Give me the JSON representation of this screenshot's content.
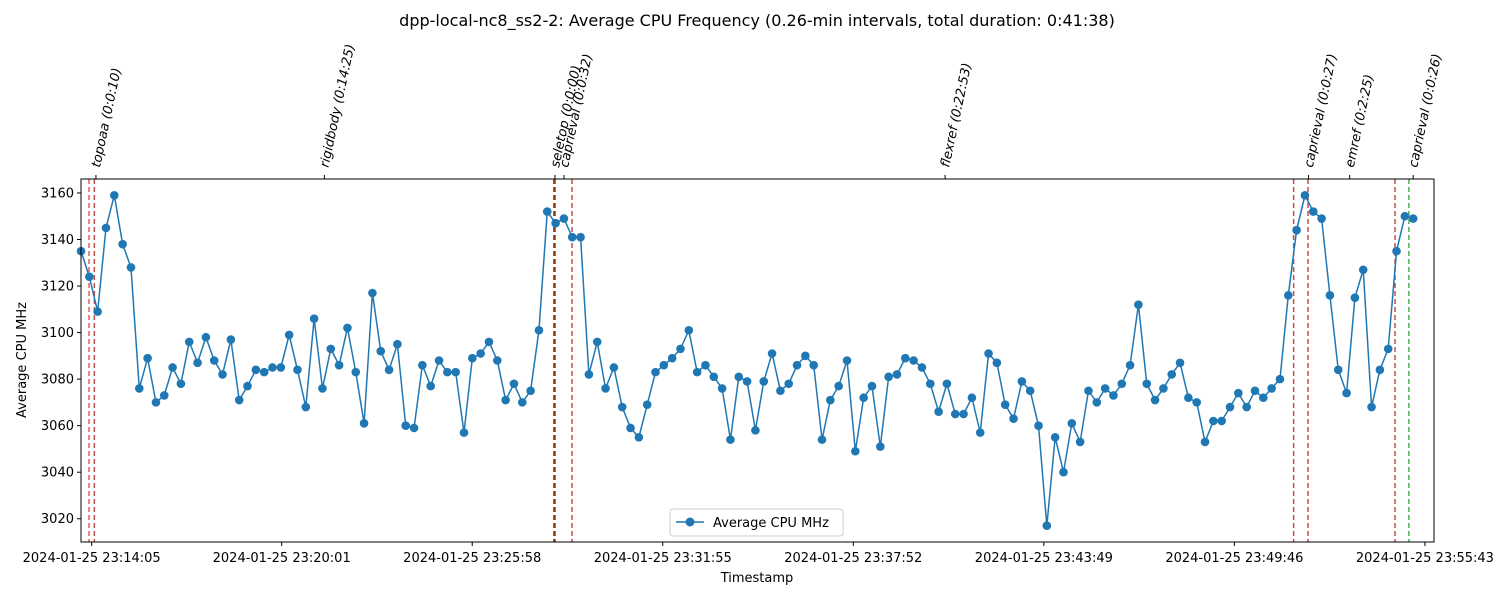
{
  "chart_data": {
    "type": "line",
    "title": "dpp-local-nc8_ss2-2: Average CPU Frequency (0.26-min intervals, total duration: 0:41:38)",
    "xlabel": "Timestamp",
    "ylabel": "Average CPU MHz",
    "x_start": "2024-01-25 23:13:45",
    "x_interval_seconds": 15.6,
    "xlim": [
      "2024-01-25 23:13:45",
      "2024-01-25 23:56:00"
    ],
    "ylim": [
      3010,
      3166
    ],
    "x_ticks": [
      "2024-01-25 23:14:05",
      "2024-01-25 23:20:01",
      "2024-01-25 23:25:58",
      "2024-01-25 23:31:55",
      "2024-01-25 23:37:52",
      "2024-01-25 23:43:49",
      "2024-01-25 23:49:46",
      "2024-01-25 23:55:43"
    ],
    "y_ticks": [
      3020,
      3040,
      3060,
      3080,
      3100,
      3120,
      3140,
      3160
    ],
    "grid": false,
    "legend_position": "bottom-center",
    "series": [
      {
        "name": "Average CPU MHz",
        "color": "#1f77b4",
        "marker": "circle",
        "values": [
          3135,
          3124,
          3109,
          3145,
          3159,
          3138,
          3128,
          3076,
          3089,
          3070,
          3073,
          3085,
          3078,
          3096,
          3087,
          3098,
          3088,
          3082,
          3097,
          3071,
          3077,
          3084,
          3083,
          3085,
          3085,
          3099,
          3084,
          3068,
          3106,
          3076,
          3093,
          3086,
          3102,
          3083,
          3061,
          3117,
          3092,
          3084,
          3095,
          3060,
          3059,
          3086,
          3077,
          3088,
          3083,
          3083,
          3057,
          3089,
          3091,
          3096,
          3088,
          3071,
          3078,
          3070,
          3075,
          3101,
          3152,
          3147,
          3149,
          3141,
          3141,
          3082,
          3096,
          3076,
          3085,
          3068,
          3059,
          3055,
          3069,
          3083,
          3086,
          3089,
          3093,
          3101,
          3083,
          3086,
          3081,
          3076,
          3054,
          3081,
          3079,
          3058,
          3079,
          3091,
          3075,
          3078,
          3086,
          3090,
          3086,
          3054,
          3071,
          3077,
          3088,
          3049,
          3072,
          3077,
          3051,
          3081,
          3082,
          3089,
          3088,
          3085,
          3078,
          3066,
          3078,
          3065,
          3065,
          3072,
          3057,
          3091,
          3087,
          3069,
          3063,
          3079,
          3075,
          3060,
          3017,
          3055,
          3040,
          3061,
          3053,
          3075,
          3070,
          3076,
          3073,
          3078,
          3086,
          3112,
          3078,
          3071,
          3076,
          3082,
          3087,
          3072,
          3070,
          3053,
          3062,
          3062,
          3068,
          3074,
          3068,
          3075,
          3072,
          3076,
          3080,
          3116,
          3144,
          3159,
          3152,
          3149,
          3116,
          3084,
          3074,
          3115,
          3127,
          3068,
          3084,
          3093,
          3135,
          3150,
          3149
        ]
      }
    ],
    "phases": [
      {
        "label": "topoaa (0:0:10)",
        "time": "2024-01-25 23:14:13",
        "color": "#c0504d"
      },
      {
        "label": "rigidbody (0:14:25)",
        "time": "2024-01-25 23:21:21",
        "color": "#c0504d"
      },
      {
        "label": "seletop (0:0:00)",
        "time": "2024-01-25 23:28:33",
        "color": "#8b3a0f"
      },
      {
        "label": "caprieval (0:0:32)",
        "time": "2024-01-25 23:28:50",
        "color": "#c0504d"
      },
      {
        "label": "flexref (0:22:53)",
        "time": "2024-01-25 23:40:44",
        "color": "#c0504d"
      },
      {
        "label": "caprieval (0:0:27)",
        "time": "2024-01-25 23:52:05",
        "color": "#c0504d"
      },
      {
        "label": "emref (0:2:25)",
        "time": "2024-01-25 23:53:22",
        "color": "#c0504d"
      },
      {
        "label": "caprieval (0:0:26)",
        "time": "2024-01-25 23:55:21",
        "color": "#4caf50"
      }
    ],
    "vertical_lines": [
      {
        "time": "2024-01-25 23:14:00",
        "color": "#e06060"
      },
      {
        "time": "2024-01-25 23:14:10",
        "color": "#c0504d"
      },
      {
        "time": "2024-01-25 23:28:31",
        "color": "#8b3a0f"
      },
      {
        "time": "2024-01-25 23:28:33",
        "color": "#8b3a0f"
      },
      {
        "time": "2024-01-25 23:29:05",
        "color": "#c0504d"
      },
      {
        "time": "2024-01-25 23:51:37",
        "color": "#c0504d"
      },
      {
        "time": "2024-01-25 23:52:04",
        "color": "#c0504d"
      },
      {
        "time": "2024-01-25 23:54:47",
        "color": "#c0504d"
      },
      {
        "time": "2024-01-25 23:55:13",
        "color": "#4caf50"
      }
    ]
  }
}
